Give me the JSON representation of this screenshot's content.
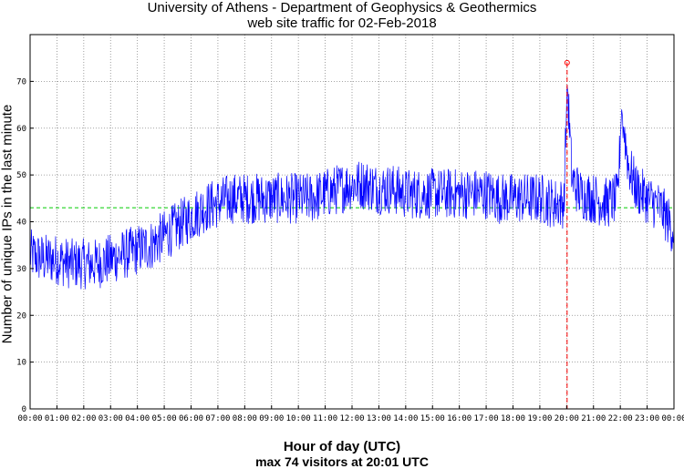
{
  "chart_data": {
    "type": "line",
    "title": "University of Athens - Department of Geophysics & Geothermics",
    "subtitle": "web site traffic for 02-Feb-2018",
    "xlabel": "Hour of day (UTC)",
    "ylabel": "Number of unique IPs in the last minute",
    "note": "max 74 visitors at 20:01 UTC",
    "xlim": [
      0,
      24
    ],
    "ylim": [
      0,
      80
    ],
    "x_ticks": [
      "00:00",
      "01:00",
      "02:00",
      "03:00",
      "04:00",
      "05:00",
      "06:00",
      "07:00",
      "08:00",
      "09:00",
      "10:00",
      "11:00",
      "12:00",
      "13:00",
      "14:00",
      "15:00",
      "16:00",
      "17:00",
      "18:00",
      "19:00",
      "20:00",
      "21:00",
      "22:00",
      "23:00",
      "00:00"
    ],
    "y_ticks": [
      0,
      10,
      20,
      30,
      40,
      50,
      60,
      70
    ],
    "grid": true,
    "mean_line": 43,
    "max_marker": {
      "hour": 20.017,
      "value": 74
    },
    "series": [
      {
        "color": "#0000ff",
        "hours": [
          0,
          0.5,
          1,
          1.5,
          2,
          2.5,
          3,
          3.5,
          4,
          4.5,
          5,
          5.5,
          6,
          6.5,
          7,
          7.5,
          8,
          8.5,
          9,
          9.5,
          10,
          10.5,
          11,
          11.5,
          12,
          12.5,
          13,
          13.5,
          14,
          14.5,
          15,
          15.5,
          16,
          16.5,
          17,
          17.5,
          18,
          18.5,
          19,
          19.5,
          19.9,
          20.02,
          20.2,
          20.5,
          21,
          21.5,
          21.9,
          22.05,
          22.3,
          22.6,
          23,
          23.5,
          24
        ],
        "values": [
          33,
          32,
          32,
          31,
          31,
          31,
          32,
          33,
          34,
          35,
          37,
          39,
          41,
          43,
          44,
          45,
          45,
          45,
          45,
          45,
          45,
          45,
          46,
          47,
          48,
          48,
          47,
          47,
          46,
          46,
          46,
          46,
          46,
          46,
          46,
          45,
          45,
          45,
          45,
          44,
          44,
          70,
          49,
          46,
          45,
          44,
          45,
          64,
          52,
          47,
          45,
          43,
          38
        ]
      }
    ],
    "colors": {
      "series": "#0000ff",
      "mean": "#00cc00",
      "max": "#ff0000",
      "grid": "#888888"
    }
  }
}
